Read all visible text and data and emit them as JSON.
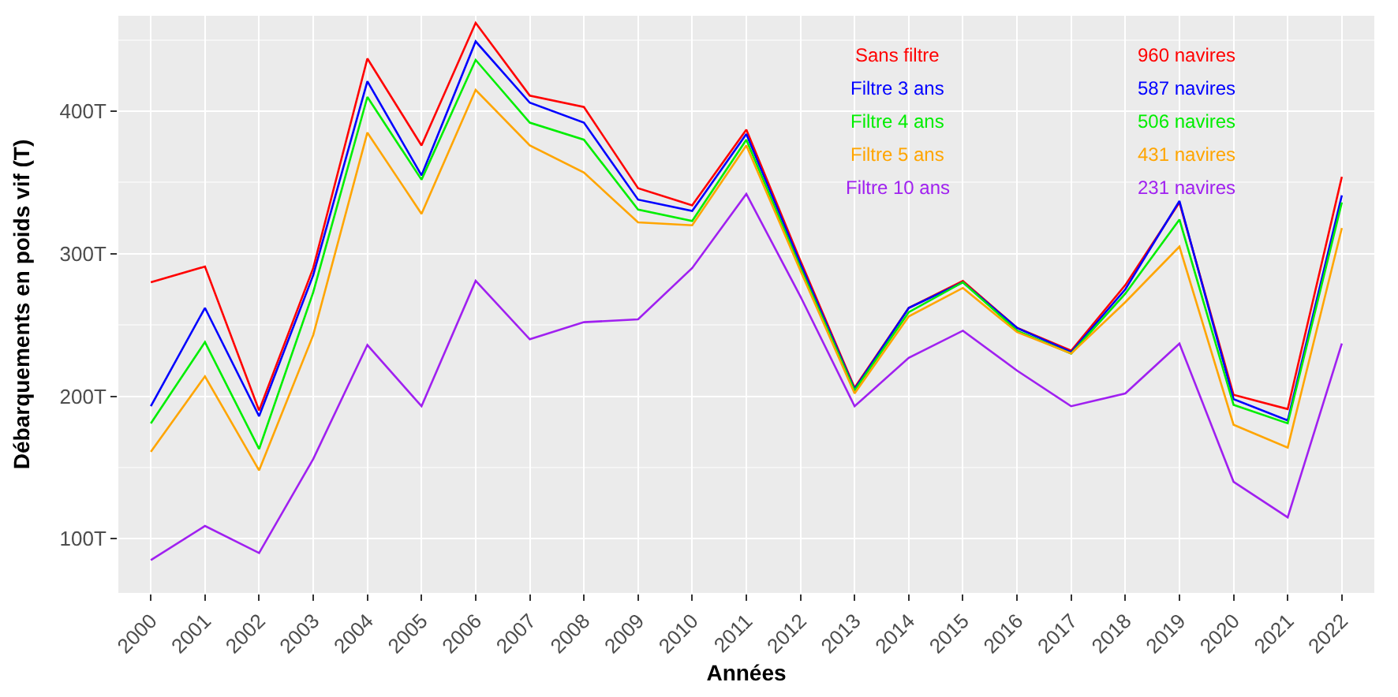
{
  "chart_data": {
    "type": "line",
    "xlabel": "Années",
    "ylabel": "Débarquements en poids vif (T)",
    "categories": [
      "2000",
      "2001",
      "2002",
      "2003",
      "2004",
      "2005",
      "2006",
      "2007",
      "2008",
      "2009",
      "2010",
      "2011",
      "2012",
      "2013",
      "2014",
      "2015",
      "2016",
      "2017",
      "2018",
      "2019",
      "2020",
      "2021",
      "2022"
    ],
    "series": [
      {
        "name": "Sans filtre",
        "color": "#ff0000",
        "values": [
          280,
          291,
          190,
          290,
          437,
          376,
          462,
          411,
          403,
          346,
          334,
          387,
          295,
          206,
          262,
          281,
          248,
          232,
          278,
          336,
          201,
          191,
          354
        ]
      },
      {
        "name": "Filtre 3 ans",
        "color": "#0000ff",
        "values": [
          193,
          262,
          186,
          285,
          421,
          355,
          449,
          406,
          392,
          338,
          330,
          384,
          293,
          205,
          262,
          280,
          248,
          231,
          275,
          337,
          198,
          183,
          341
        ]
      },
      {
        "name": "Filtre 4 ans",
        "color": "#00ee00",
        "values": [
          181,
          238,
          163,
          273,
          410,
          352,
          436,
          392,
          380,
          331,
          323,
          380,
          290,
          204,
          259,
          280,
          246,
          230,
          272,
          324,
          194,
          181,
          336
        ]
      },
      {
        "name": "Filtre 5 ans",
        "color": "#ffa500",
        "values": [
          161,
          214,
          148,
          243,
          385,
          328,
          415,
          376,
          357,
          322,
          320,
          376,
          288,
          202,
          256,
          276,
          245,
          230,
          266,
          305,
          180,
          164,
          318
        ]
      },
      {
        "name": "Filtre 10 ans",
        "color": "#a020f0",
        "values": [
          85,
          109,
          90,
          156,
          236,
          193,
          281,
          240,
          252,
          254,
          290,
          342,
          270,
          193,
          227,
          246,
          218,
          193,
          202,
          237,
          140,
          115,
          237
        ]
      }
    ],
    "annotations": [
      "960 navires",
      "587 navires",
      "506 navires",
      "431 navires",
      "231 navires"
    ],
    "ylim": [
      62,
      467
    ],
    "yticks": [
      {
        "value": 100,
        "label": "100T"
      },
      {
        "value": 200,
        "label": "200T"
      },
      {
        "value": 300,
        "label": "300T"
      },
      {
        "value": 400,
        "label": "400T"
      }
    ],
    "grid": true,
    "legend": "top right",
    "marker": "none",
    "line_style": "solid"
  }
}
